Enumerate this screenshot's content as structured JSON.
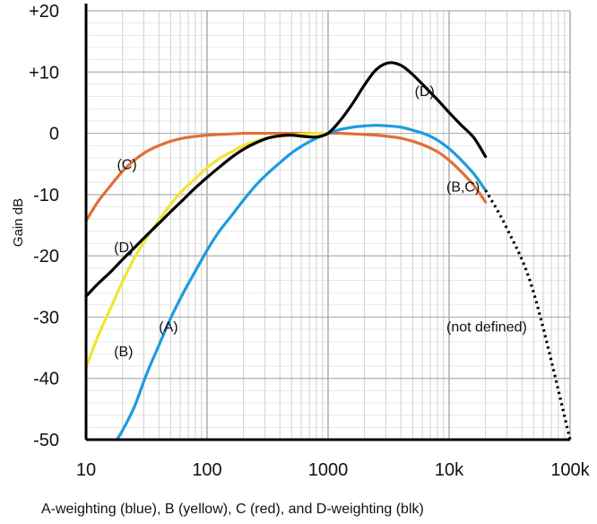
{
  "chart_data": {
    "type": "line",
    "title": "",
    "caption": "A-weighting (blue), B (yellow), C (red), and D-weighting (blk)",
    "xlabel": "",
    "ylabel": "Gain dB",
    "x_scale": "log",
    "xlim": [
      10,
      100000
    ],
    "ylim": [
      -50,
      20
    ],
    "x_ticks": [
      {
        "value": 10,
        "label": "10"
      },
      {
        "value": 100,
        "label": "100"
      },
      {
        "value": 1000,
        "label": "1000"
      },
      {
        "value": 10000,
        "label": "10k"
      },
      {
        "value": 100000,
        "label": "100k"
      }
    ],
    "y_ticks": [
      {
        "value": 20,
        "label": "+20"
      },
      {
        "value": 10,
        "label": "+10"
      },
      {
        "value": 0,
        "label": "0"
      },
      {
        "value": -10,
        "label": "-10"
      },
      {
        "value": -20,
        "label": "-20"
      },
      {
        "value": -30,
        "label": "-30"
      },
      {
        "value": -40,
        "label": "-40"
      },
      {
        "value": -50,
        "label": "-50"
      }
    ],
    "grid": true,
    "series": [
      {
        "name": "A",
        "color": "#1e9be0",
        "x": [
          18,
          20,
          25,
          31.5,
          40,
          50,
          63,
          80,
          100,
          125,
          160,
          200,
          250,
          315,
          400,
          500,
          630,
          800,
          1000,
          1250,
          1600,
          2000,
          2500,
          3150,
          4000,
          5000,
          6300,
          8000,
          10000,
          12500,
          16000,
          20000
        ],
        "y": [
          -50,
          -48.5,
          -44.7,
          -39.4,
          -34.6,
          -30.2,
          -26.2,
          -22.5,
          -19.1,
          -16.1,
          -13.4,
          -10.9,
          -8.6,
          -6.6,
          -4.8,
          -3.2,
          -1.9,
          -0.8,
          0,
          0.6,
          1.0,
          1.2,
          1.3,
          1.2,
          1.0,
          0.5,
          -0.1,
          -1.1,
          -2.5,
          -4.3,
          -6.6,
          -9.3
        ]
      },
      {
        "name": "B",
        "color": "#f0e631",
        "x": [
          10,
          12.5,
          16,
          20,
          25,
          31.5,
          40,
          50,
          63,
          80,
          100,
          125,
          160,
          200,
          250,
          315,
          400,
          500,
          630,
          800,
          1000
        ],
        "y": [
          -38.2,
          -33.2,
          -28.5,
          -24.2,
          -20.4,
          -17.1,
          -14.2,
          -11.6,
          -9.3,
          -7.4,
          -5.6,
          -4.2,
          -3.0,
          -2.0,
          -1.3,
          -0.8,
          -0.5,
          -0.3,
          -0.1,
          0,
          0
        ]
      },
      {
        "name": "C",
        "color": "#e07035",
        "x": [
          10,
          12.5,
          16,
          20,
          25,
          31.5,
          40,
          50,
          63,
          80,
          100,
          125,
          160,
          200,
          250,
          315,
          400,
          500,
          630,
          800,
          1000,
          1250,
          1600,
          2000,
          2500,
          3150,
          4000,
          5000,
          6300,
          8000,
          10000,
          12500,
          16000,
          20000
        ],
        "y": [
          -14.3,
          -11.2,
          -8.5,
          -6.2,
          -4.4,
          -3.0,
          -2.0,
          -1.3,
          -0.8,
          -0.5,
          -0.3,
          -0.2,
          -0.1,
          0,
          0,
          0,
          0,
          0,
          0,
          0,
          0,
          0,
          -0.1,
          -0.2,
          -0.3,
          -0.5,
          -0.8,
          -1.3,
          -2.0,
          -3.0,
          -4.4,
          -6.2,
          -8.5,
          -11.2
        ]
      },
      {
        "name": "D",
        "color": "#000000",
        "x": [
          10,
          12.5,
          16,
          20,
          25,
          31.5,
          40,
          50,
          63,
          80,
          100,
          125,
          160,
          200,
          250,
          315,
          400,
          500,
          630,
          800,
          1000,
          1250,
          1600,
          2000,
          2500,
          3150,
          4000,
          5000,
          6300,
          8000,
          10000,
          12500,
          16000,
          20000
        ],
        "y": [
          -26.6,
          -24.6,
          -22.6,
          -20.6,
          -18.7,
          -16.7,
          -14.7,
          -12.8,
          -10.9,
          -8.9,
          -7.2,
          -5.6,
          -3.9,
          -2.6,
          -1.6,
          -0.8,
          -0.4,
          -0.3,
          -0.5,
          -0.6,
          0,
          2.0,
          4.9,
          7.9,
          10.4,
          11.5,
          11.1,
          9.6,
          7.6,
          5.5,
          3.4,
          1.4,
          -0.7,
          -3.8
        ]
      }
    ],
    "extension": {
      "label": "(not defined)",
      "style": "dotted",
      "color": "#000000",
      "x": [
        20000,
        30000,
        50000,
        100000
      ],
      "y": [
        -9.3,
        -15.5,
        -26,
        -50
      ]
    },
    "annotations": [
      {
        "text": "(D)",
        "x": 5200,
        "y": 7
      },
      {
        "text": "(C)",
        "x": 18,
        "y": -5
      },
      {
        "text": "(B,C)",
        "x": 9500,
        "y": -8.6
      },
      {
        "text": "(D)",
        "x": 17,
        "y": -18.5
      },
      {
        "text": "(A)",
        "x": 40,
        "y": -31.5
      },
      {
        "text": "(B)",
        "x": 17,
        "y": -35.5
      },
      {
        "text": "(not defined)",
        "x": 9500,
        "y": -31.5
      }
    ]
  }
}
